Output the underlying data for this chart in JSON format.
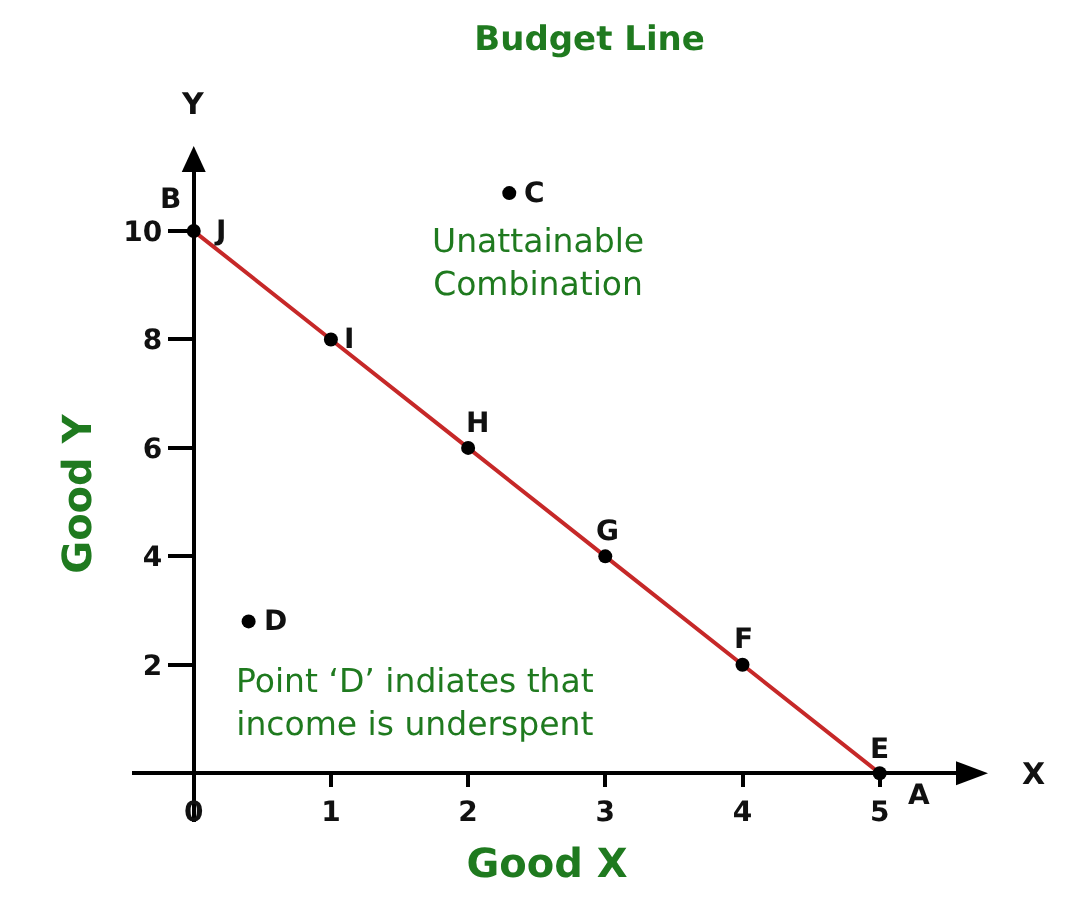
{
  "chart_data": {
    "type": "line",
    "title": "Budget Line",
    "xlabel": "Good X",
    "ylabel": "Good Y",
    "series": [
      {
        "color": "#c62828",
        "x": [
          0,
          1,
          2,
          3,
          4,
          5
        ],
        "values": [
          10,
          8,
          6,
          4,
          2,
          0
        ]
      },
      {
        "type": "scatter",
        "marker": "circle",
        "color": "#000000",
        "x": [
          0,
          1,
          2,
          3,
          4,
          5,
          2.3,
          0.4
        ],
        "values": [
          10,
          8,
          6,
          4,
          2,
          0,
          10.7,
          2.8
        ]
      }
    ],
    "xlim": [
      -0.45,
      5.6
    ],
    "ylim": [
      -0.9,
      11.2
    ],
    "xticks": [
      {
        "value": 0,
        "label": "0"
      },
      1,
      2,
      3,
      4,
      5
    ],
    "yticks": [
      2,
      4,
      6,
      8,
      10
    ],
    "annotations": [
      {
        "text": "B",
        "x": 0,
        "y": 10
      },
      {
        "text": "J",
        "x": 0,
        "y": 10
      },
      {
        "text": "I",
        "x": 1,
        "y": 8
      },
      {
        "text": "H",
        "x": 2,
        "y": 6
      },
      {
        "text": "G",
        "x": 3,
        "y": 4
      },
      {
        "text": "F",
        "x": 4,
        "y": 2
      },
      {
        "text": "E",
        "x": 5,
        "y": 0
      },
      {
        "text": "A",
        "x": 5,
        "y": 0
      },
      {
        "text": "C",
        "x": 2.3,
        "y": 10.7
      },
      {
        "text": "D",
        "x": 0.4,
        "y": 2.8
      },
      {
        "text": "Unattainable Combination",
        "x": 2.3,
        "y": 10.7
      },
      {
        "text": "Point ‘D’ indiates that income is underspent",
        "x": 0.4,
        "y": 2.8
      },
      "Y",
      "X"
    ]
  }
}
